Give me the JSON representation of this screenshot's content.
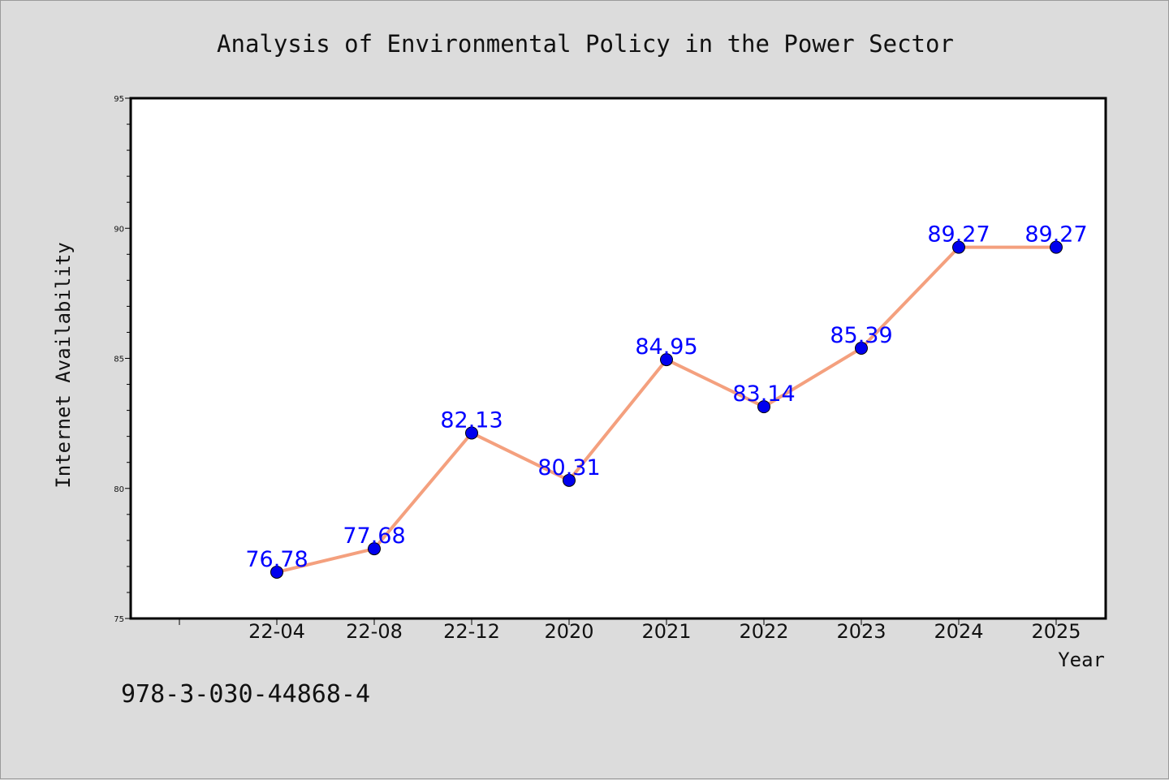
{
  "chart_data": {
    "type": "line",
    "title": "Analysis of Environmental Policy in the Power Sector",
    "xlabel": "Year",
    "ylabel": "Internet Availability",
    "categories": [
      "22-04",
      "22-08",
      "22-12",
      "2020",
      "2021",
      "2022",
      "2023",
      "2024",
      "2025"
    ],
    "values": [
      76.78,
      77.68,
      82.13,
      80.31,
      84.95,
      83.14,
      85.39,
      89.27,
      89.27
    ],
    "data_labels": [
      "76.78",
      "77.68",
      "82.13",
      "80.31",
      "84.95",
      "83.14",
      "85.39",
      "89.27",
      "89.27"
    ],
    "ylim": [
      75,
      95
    ],
    "yticks": [
      "75",
      "80",
      "85",
      "90",
      "95"
    ],
    "grid": false,
    "line_color": "#f4a07e",
    "marker_color": "#0000ee",
    "label_color": "#0000ff"
  },
  "footer": {
    "isbn": "978-3-030-44868-4"
  }
}
